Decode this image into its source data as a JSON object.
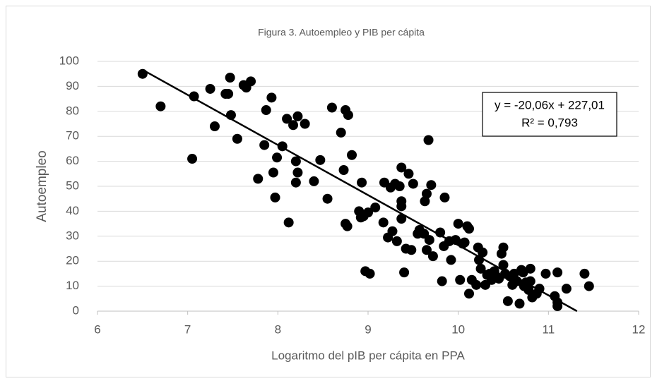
{
  "chart_data": {
    "type": "scatter",
    "title": "Figura 3. Autoempleo y PIB per cápita",
    "x_label": "Logaritmo del pIB per cápita en PPA",
    "y_label": "Autoempleo",
    "xlim": [
      6,
      12
    ],
    "xticks": [
      6,
      7,
      8,
      9,
      10,
      11,
      12
    ],
    "ylim": [
      0,
      100
    ],
    "yticks": [
      0,
      10,
      20,
      30,
      40,
      50,
      60,
      70,
      80,
      90,
      100
    ],
    "grid": true,
    "color": "#000000",
    "trendline": {
      "slope": -20.06,
      "intercept": 227.01,
      "equation": "y = -20,06x + 227,01",
      "r2_label": "R² = 0,793",
      "color": "#000000"
    },
    "x": [
      6.5,
      6.7,
      7.05,
      7.07,
      7.25,
      7.3,
      7.42,
      7.45,
      7.47,
      7.48,
      7.55,
      7.62,
      7.65,
      7.7,
      7.78,
      7.85,
      7.87,
      7.93,
      7.95,
      7.97,
      7.99,
      8.05,
      8.1,
      8.12,
      8.17,
      8.2,
      8.2,
      8.22,
      8.22,
      8.3,
      8.4,
      8.47,
      8.55,
      8.6,
      8.7,
      8.73,
      8.75,
      8.75,
      8.77,
      8.78,
      8.82,
      8.9,
      8.92,
      8.93,
      8.95,
      8.97,
      9.0,
      9.02,
      9.08,
      9.17,
      9.18,
      9.22,
      9.25,
      9.27,
      9.3,
      9.32,
      9.35,
      9.37,
      9.37,
      9.37,
      9.37,
      9.4,
      9.42,
      9.45,
      9.48,
      9.5,
      9.55,
      9.57,
      9.62,
      9.63,
      9.65,
      9.65,
      9.67,
      9.68,
      9.7,
      9.72,
      9.8,
      9.82,
      9.84,
      9.85,
      9.9,
      9.92,
      9.97,
      10.0,
      10.02,
      10.05,
      10.07,
      10.1,
      10.12,
      10.12,
      10.15,
      10.2,
      10.22,
      10.23,
      10.25,
      10.27,
      10.3,
      10.32,
      10.35,
      10.37,
      10.4,
      10.42,
      10.45,
      10.48,
      10.5,
      10.5,
      10.52,
      10.55,
      10.57,
      10.6,
      10.62,
      10.65,
      10.68,
      10.7,
      10.72,
      10.73,
      10.75,
      10.78,
      10.8,
      10.8,
      10.82,
      10.87,
      10.9,
      10.97,
      11.07,
      11.1,
      11.1,
      11.1,
      11.2,
      11.4,
      11.45
    ],
    "values": [
      95,
      82,
      61,
      86,
      89,
      74,
      87,
      87,
      93.5,
      78.5,
      69,
      90.5,
      89.5,
      92,
      53,
      66.5,
      80.5,
      85.5,
      55.5,
      45.5,
      61.5,
      66,
      77,
      35.5,
      74.5,
      60,
      51.5,
      55.5,
      78,
      75,
      52,
      60.5,
      45,
      81.5,
      71.5,
      56.5,
      80.5,
      35,
      34,
      78.5,
      62.5,
      40,
      37.5,
      51.5,
      38,
      16,
      39.5,
      15,
      41.5,
      35.5,
      51.5,
      29.5,
      49.5,
      32,
      51,
      28,
      50,
      57.5,
      44,
      42,
      37,
      15.5,
      25,
      55,
      24.5,
      51,
      31,
      32.5,
      31,
      44,
      47,
      24.5,
      68.5,
      28.5,
      50.5,
      22,
      31.5,
      12,
      26,
      45.5,
      28,
      20.5,
      28.5,
      35,
      12.5,
      27,
      27.5,
      34,
      33,
      7,
      12.5,
      10.5,
      25.5,
      20.5,
      17,
      23.5,
      10.5,
      14.5,
      15,
      12.5,
      16,
      14,
      13,
      23,
      25.5,
      18.5,
      15,
      4,
      14,
      10.5,
      15,
      12,
      3,
      16.5,
      15.5,
      10,
      11.5,
      8.5,
      12,
      17,
      5.5,
      7,
      9,
      15,
      6,
      2,
      3.5,
      15.5,
      9,
      15,
      10
    ]
  }
}
